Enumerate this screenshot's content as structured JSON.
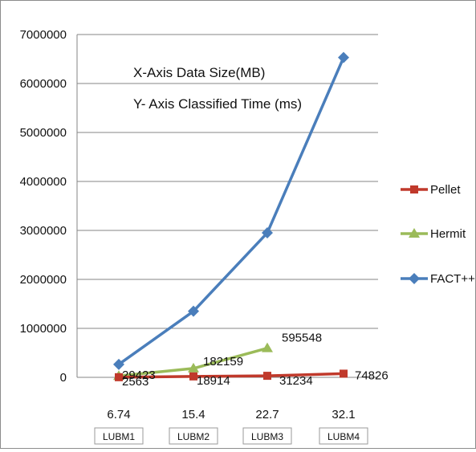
{
  "chart_data": {
    "type": "line",
    "title": "",
    "xlabel": "",
    "ylabel": "",
    "ylim": [
      0,
      7000000
    ],
    "yticks": [
      0,
      1000000,
      2000000,
      3000000,
      4000000,
      5000000,
      6000000,
      7000000
    ],
    "grid": true,
    "legend_position": "right",
    "categories": [
      "6.74",
      "15.4",
      "22.7",
      "32.1"
    ],
    "category_sublabels": [
      "LUBM1",
      "LUBM2",
      "LUBM3",
      "LUBM4"
    ],
    "annotations": [
      "X-Axis  Data Size(MB)",
      "Y- Axis Classified  Time (ms)"
    ],
    "series": [
      {
        "name": "Pellet",
        "color": "#c0392b",
        "marker": "square",
        "values": [
          2563,
          18914,
          31234,
          74826
        ],
        "labels": [
          "2563",
          "18914",
          "31234",
          "74826"
        ]
      },
      {
        "name": "Hermit",
        "color": "#9bbb59",
        "marker": "triangle",
        "values": [
          29423,
          182159,
          595548,
          null
        ],
        "labels": [
          "29423",
          "182159",
          "595548",
          ""
        ]
      },
      {
        "name": "FACT++",
        "color": "#4a7ebb",
        "marker": "diamond",
        "values": [
          265000,
          1350000,
          2950000,
          6530000
        ],
        "labels": [
          "",
          "",
          "",
          ""
        ]
      }
    ]
  }
}
